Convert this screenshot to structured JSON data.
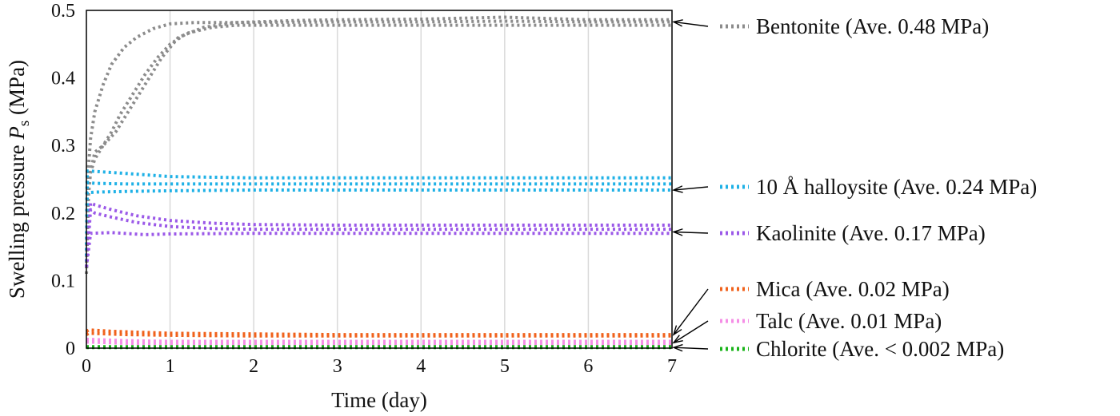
{
  "chart_data": {
    "type": "line",
    "xlabel": "Time (day)",
    "ylabel_main": "Swelling pressure ",
    "ylabel_symbol": "P",
    "ylabel_sub": "s",
    "ylabel_unit": " (MPa)",
    "xlim": [
      0,
      7
    ],
    "ylim": [
      0,
      0.5
    ],
    "x_ticks": [
      "0",
      "1",
      "2",
      "3",
      "4",
      "5",
      "6",
      "7"
    ],
    "y_ticks": [
      "0",
      "0.1",
      "0.2",
      "0.3",
      "0.4",
      "0.5"
    ],
    "grid": "vertical",
    "legend_position": "right",
    "series": [
      {
        "name": "Bentonite (Ave.  0.48 MPa)",
        "color": "#8c8c8c",
        "runs": [
          {
            "x": [
              0,
              0.02,
              0.05,
              0.1,
              0.2,
              0.3,
              0.45,
              0.6,
              0.8,
              1.0,
              1.3,
              2,
              3,
              4,
              5,
              6,
              7
            ],
            "y": [
              0.11,
              0.26,
              0.31,
              0.35,
              0.39,
              0.42,
              0.445,
              0.46,
              0.473,
              0.48,
              0.482,
              0.482,
              0.483,
              0.483,
              0.484,
              0.483,
              0.483
            ]
          },
          {
            "x": [
              0,
              0.02,
              0.05,
              0.1,
              0.2,
              0.3,
              0.4,
              0.55,
              0.7,
              0.85,
              1.0,
              1.2,
              1.5,
              1.8,
              2.2,
              3,
              4,
              5,
              6,
              7
            ],
            "y": [
              0.11,
              0.22,
              0.26,
              0.28,
              0.3,
              0.32,
              0.345,
              0.375,
              0.405,
              0.43,
              0.45,
              0.466,
              0.475,
              0.478,
              0.478,
              0.478,
              0.478,
              0.478,
              0.478,
              0.478
            ]
          },
          {
            "x": [
              0,
              0.03,
              0.1,
              0.2,
              0.35,
              0.5,
              0.7,
              0.9,
              1.1,
              1.4,
              1.8,
              2.5,
              3,
              4,
              5,
              6,
              7
            ],
            "y": [
              0.11,
              0.25,
              0.29,
              0.3,
              0.32,
              0.35,
              0.39,
              0.43,
              0.46,
              0.475,
              0.482,
              0.485,
              0.486,
              0.487,
              0.49,
              0.486,
              0.486
            ]
          }
        ]
      },
      {
        "name": "10 Å halloysite  (Ave.  0.24 MPa)",
        "color": "#1fb1e6",
        "runs": [
          {
            "x": [
              0,
              0.01,
              0.05,
              0.3,
              1,
              2,
              3,
              4,
              5,
              6,
              7
            ],
            "y": [
              0.12,
              0.262,
              0.262,
              0.26,
              0.254,
              0.252,
              0.252,
              0.252,
              0.252,
              0.252,
              0.252
            ]
          },
          {
            "x": [
              0,
              0.01,
              0.1,
              0.5,
              1,
              2,
              3,
              4,
              5,
              6,
              7
            ],
            "y": [
              0.12,
              0.245,
              0.244,
              0.243,
              0.243,
              0.243,
              0.243,
              0.243,
              0.243,
              0.243,
              0.243
            ]
          },
          {
            "x": [
              0,
              0.01,
              0.1,
              0.5,
              1,
              2,
              3,
              4,
              5,
              6,
              7
            ],
            "y": [
              0.12,
              0.23,
              0.231,
              0.232,
              0.233,
              0.234,
              0.234,
              0.234,
              0.234,
              0.234,
              0.234
            ]
          }
        ]
      },
      {
        "name": "Kaolinite (Ave.  0.17 MPa)",
        "color": "#9b59e8",
        "runs": [
          {
            "x": [
              0,
              0.05,
              0.1,
              0.3,
              0.6,
              1,
              1.5,
              2,
              3,
              4,
              5,
              6,
              7
            ],
            "y": [
              0.12,
              0.215,
              0.212,
              0.205,
              0.196,
              0.189,
              0.185,
              0.183,
              0.182,
              0.182,
              0.182,
              0.182,
              0.182
            ]
          },
          {
            "x": [
              0,
              0.05,
              0.1,
              0.3,
              0.6,
              1,
              1.5,
              2,
              3,
              4,
              5,
              6,
              7
            ],
            "y": [
              0.12,
              0.205,
              0.2,
              0.194,
              0.186,
              0.18,
              0.177,
              0.176,
              0.176,
              0.176,
              0.176,
              0.176,
              0.176
            ]
          },
          {
            "x": [
              0,
              0.05,
              0.3,
              0.7,
              1,
              2,
              3,
              4,
              5,
              6,
              7
            ],
            "y": [
              0.12,
              0.17,
              0.171,
              0.168,
              0.169,
              0.17,
              0.17,
              0.17,
              0.17,
              0.17,
              0.17
            ]
          }
        ]
      },
      {
        "name": "Mica (Ave.  0.02 MPa)",
        "color": "#f0621c",
        "runs": [
          {
            "x": [
              0,
              0.03,
              0.3,
              1,
              2,
              3,
              4,
              5,
              6,
              7
            ],
            "y": [
              0.025,
              0.027,
              0.025,
              0.022,
              0.021,
              0.02,
              0.02,
              0.02,
              0.02,
              0.02
            ]
          },
          {
            "x": [
              0,
              0.03,
              0.5,
              1,
              2,
              3,
              4,
              5,
              6,
              7
            ],
            "y": [
              0.02,
              0.022,
              0.02,
              0.019,
              0.018,
              0.018,
              0.018,
              0.018,
              0.018,
              0.018
            ]
          }
        ]
      },
      {
        "name": "Talc (Ave.  0.01 MPa)",
        "color": "#f58ee6",
        "runs": [
          {
            "x": [
              0,
              0.03,
              0.5,
              1,
              2,
              3,
              4,
              5,
              6,
              7
            ],
            "y": [
              0.013,
              0.013,
              0.011,
              0.01,
              0.01,
              0.01,
              0.01,
              0.01,
              0.01,
              0.01
            ]
          },
          {
            "x": [
              0,
              0.03,
              0.5,
              1,
              2,
              3,
              4,
              5,
              6,
              7
            ],
            "y": [
              0.009,
              0.009,
              0.007,
              0.006,
              0.006,
              0.006,
              0.006,
              0.006,
              0.006,
              0.006
            ]
          }
        ]
      },
      {
        "name": "Chlorite (Ave.  < 0.002 MPa)",
        "color": "#19b419",
        "runs": [
          {
            "x": [
              0,
              1,
              2,
              3,
              4,
              5,
              6,
              7
            ],
            "y": [
              0.002,
              0.002,
              0.002,
              0.002,
              0.002,
              0.002,
              0.002,
              0.002
            ]
          },
          {
            "x": [
              0,
              1,
              2,
              3,
              4,
              5,
              6,
              7
            ],
            "y": [
              0.001,
              0.001,
              0.001,
              0.001,
              0.001,
              0.001,
              0.001,
              0.001
            ]
          }
        ]
      }
    ]
  }
}
